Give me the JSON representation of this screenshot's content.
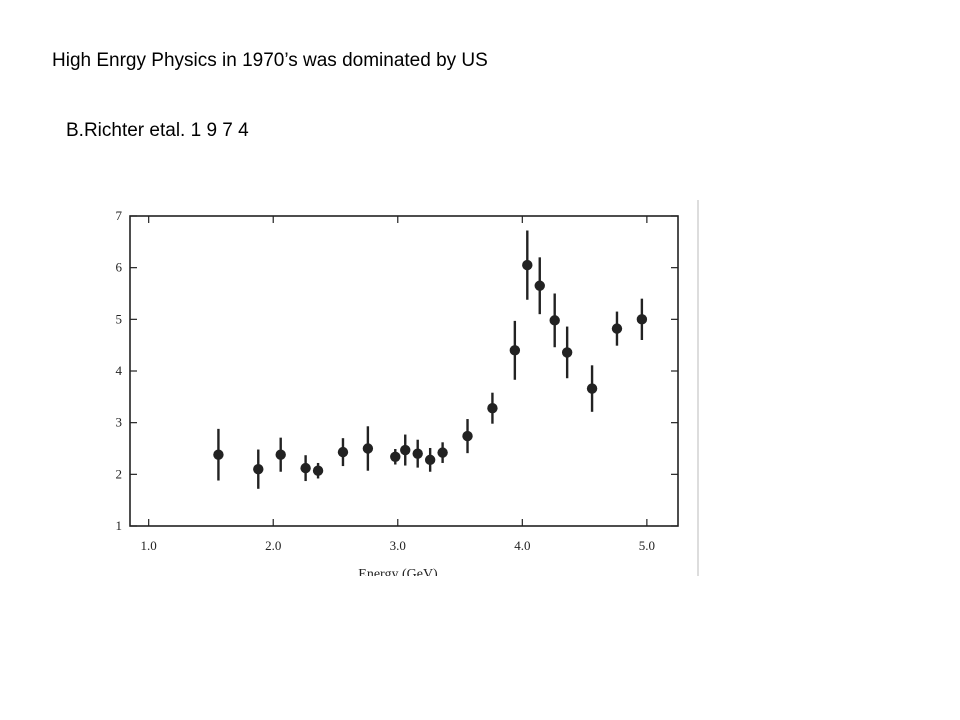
{
  "slide": {
    "title": "High Enrgy Physics in 1970’s was dominated by US",
    "subtitle": "B.Richter etal.  1  9  7  4"
  },
  "chart_data": {
    "type": "scatter",
    "title": "",
    "xlabel": "Energy (GeV)",
    "ylabel": "",
    "xlim": [
      0.85,
      5.25
    ],
    "ylim": [
      1,
      7
    ],
    "xticks": [
      "1.0",
      "2.0",
      "3.0",
      "4.0",
      "5.0"
    ],
    "xtick_values": [
      1.0,
      2.0,
      3.0,
      4.0,
      5.0
    ],
    "yticks": [
      "1",
      "2",
      "3",
      "4",
      "5",
      "6",
      "7"
    ],
    "ytick_values": [
      1,
      2,
      3,
      4,
      5,
      6,
      7
    ],
    "grid": false,
    "legend": "none",
    "marker_color": "#222222",
    "points": [
      {
        "x": 1.56,
        "y": 2.38,
        "err": 0.5
      },
      {
        "x": 1.88,
        "y": 2.1,
        "err": 0.38
      },
      {
        "x": 2.06,
        "y": 2.38,
        "err": 0.33
      },
      {
        "x": 2.26,
        "y": 2.12,
        "err": 0.25
      },
      {
        "x": 2.36,
        "y": 2.07,
        "err": 0.15
      },
      {
        "x": 2.56,
        "y": 2.43,
        "err": 0.27
      },
      {
        "x": 2.76,
        "y": 2.5,
        "err": 0.43
      },
      {
        "x": 2.98,
        "y": 2.34,
        "err": 0.15
      },
      {
        "x": 3.06,
        "y": 2.47,
        "err": 0.3
      },
      {
        "x": 3.16,
        "y": 2.4,
        "err": 0.27
      },
      {
        "x": 3.26,
        "y": 2.28,
        "err": 0.23
      },
      {
        "x": 3.36,
        "y": 2.42,
        "err": 0.2
      },
      {
        "x": 3.56,
        "y": 2.74,
        "err": 0.33
      },
      {
        "x": 3.76,
        "y": 3.28,
        "err": 0.3
      },
      {
        "x": 3.94,
        "y": 4.4,
        "err": 0.57
      },
      {
        "x": 4.04,
        "y": 6.05,
        "err": 0.67
      },
      {
        "x": 4.14,
        "y": 5.65,
        "err": 0.55
      },
      {
        "x": 4.26,
        "y": 4.98,
        "err": 0.52
      },
      {
        "x": 4.36,
        "y": 4.36,
        "err": 0.5
      },
      {
        "x": 4.56,
        "y": 3.66,
        "err": 0.45
      },
      {
        "x": 4.76,
        "y": 4.82,
        "err": 0.33
      },
      {
        "x": 4.96,
        "y": 5.0,
        "err": 0.4
      }
    ]
  }
}
